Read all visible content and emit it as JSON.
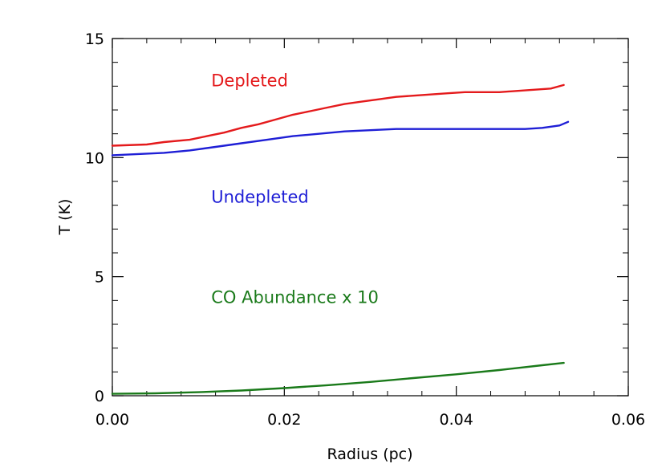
{
  "chart_data": {
    "type": "line",
    "xlabel": "Radius (pc)",
    "ylabel": "T (K)",
    "xlim": [
      0.0,
      0.06
    ],
    "ylim": [
      0,
      15
    ],
    "x_ticks": [
      "0.00",
      "0.02",
      "0.04",
      "0.06"
    ],
    "y_ticks": [
      "0",
      "5",
      "10",
      "15"
    ],
    "grid": false,
    "annotations": [
      {
        "text": "Depleted",
        "color": "#e41a1c",
        "at": [
          0.0115,
          13.0
        ]
      },
      {
        "text": "Undepleted",
        "color": "#1f1fd6",
        "at": [
          0.0115,
          8.1
        ]
      },
      {
        "text": "CO Abundance x 10",
        "color": "#1a7a1a",
        "at": [
          0.0115,
          3.9
        ]
      }
    ],
    "series": [
      {
        "name": "Depleted",
        "color": "#e41a1c",
        "x": [
          0.0,
          0.004,
          0.006,
          0.009,
          0.011,
          0.013,
          0.015,
          0.017,
          0.019,
          0.021,
          0.023,
          0.025,
          0.027,
          0.029,
          0.031,
          0.033,
          0.035,
          0.037,
          0.039,
          0.041,
          0.043,
          0.045,
          0.047,
          0.049,
          0.051,
          0.0525
        ],
        "values": [
          10.5,
          10.55,
          10.65,
          10.75,
          10.9,
          11.05,
          11.25,
          11.4,
          11.6,
          11.8,
          11.95,
          12.1,
          12.25,
          12.35,
          12.45,
          12.55,
          12.6,
          12.65,
          12.7,
          12.75,
          12.75,
          12.75,
          12.8,
          12.85,
          12.9,
          13.05
        ]
      },
      {
        "name": "Undepleted",
        "color": "#1f1fd6",
        "x": [
          0.0,
          0.003,
          0.006,
          0.009,
          0.012,
          0.015,
          0.018,
          0.021,
          0.024,
          0.027,
          0.03,
          0.033,
          0.036,
          0.039,
          0.042,
          0.045,
          0.048,
          0.05,
          0.052,
          0.053
        ],
        "values": [
          10.1,
          10.15,
          10.2,
          10.3,
          10.45,
          10.6,
          10.75,
          10.9,
          11.0,
          11.1,
          11.15,
          11.2,
          11.2,
          11.2,
          11.2,
          11.2,
          11.2,
          11.25,
          11.35,
          11.5
        ]
      },
      {
        "name": "CO Abundance x 10",
        "color": "#1a7a1a",
        "x": [
          0.0,
          0.005,
          0.01,
          0.015,
          0.02,
          0.025,
          0.03,
          0.035,
          0.04,
          0.045,
          0.05,
          0.0525
        ],
        "values": [
          0.08,
          0.1,
          0.15,
          0.22,
          0.32,
          0.44,
          0.58,
          0.74,
          0.9,
          1.08,
          1.28,
          1.38
        ]
      }
    ]
  }
}
